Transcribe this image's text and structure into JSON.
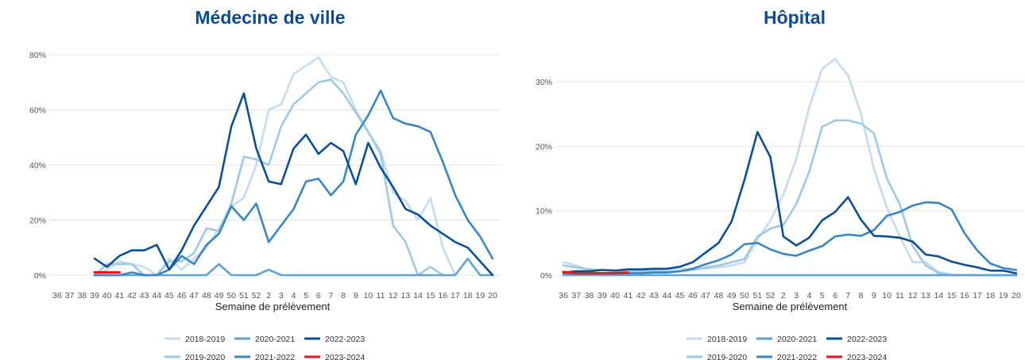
{
  "x_labels": [
    "36",
    "37",
    "38",
    "39",
    "40",
    "41",
    "42",
    "43",
    "44",
    "45",
    "46",
    "47",
    "48",
    "49",
    "50",
    "51",
    "52",
    "2",
    "3",
    "4",
    "5",
    "6",
    "7",
    "8",
    "9",
    "10",
    "11",
    "12",
    "13",
    "14",
    "15",
    "16",
    "17",
    "18",
    "19",
    "20"
  ],
  "xlabel": "Semaine de prélèvement",
  "colors": {
    "2018-2019": "#c6dbef",
    "2019-2020": "#9ecae1",
    "2020-2021": "#5fa2d4",
    "2021-2022": "#3a86c0",
    "2022-2023": "#0d4f94",
    "2023-2024": "#e31a1c"
  },
  "chart_data": [
    {
      "type": "line",
      "title": "Médecine de ville",
      "xlabel": "Semaine de prélèvement",
      "ylim": [
        0,
        80
      ],
      "yticks": [
        0,
        20,
        40,
        60,
        80
      ],
      "ytick_labels": [
        "0%",
        "20%",
        "40%",
        "60%",
        "80%"
      ],
      "legend": "bottom",
      "x": [
        "36",
        "37",
        "38",
        "39",
        "40",
        "41",
        "42",
        "43",
        "44",
        "45",
        "46",
        "47",
        "48",
        "49",
        "50",
        "51",
        "52",
        "2",
        "3",
        "4",
        "5",
        "6",
        "7",
        "8",
        "9",
        "10",
        "11",
        "12",
        "13",
        "14",
        "15",
        "16",
        "17",
        "18",
        "19",
        "20"
      ],
      "series": [
        {
          "name": "2018-2019",
          "values": [
            null,
            null,
            null,
            0,
            2,
            5,
            4,
            3,
            0,
            6,
            2,
            6,
            10,
            17,
            25,
            28,
            40,
            60,
            62,
            73,
            76,
            79,
            72,
            70,
            60,
            52,
            45,
            30,
            27,
            20,
            28,
            10,
            0,
            null,
            null,
            null
          ]
        },
        {
          "name": "2019-2020",
          "values": [
            null,
            null,
            null,
            0,
            4,
            4,
            4,
            0,
            0,
            5,
            5,
            8,
            17,
            16,
            26,
            43,
            42,
            40,
            54,
            62,
            66,
            70,
            71,
            66,
            59,
            52,
            44,
            18,
            12,
            0,
            3,
            0,
            null,
            null,
            null,
            null
          ]
        },
        {
          "name": "2020-2021",
          "values": [
            null,
            null,
            null,
            0,
            0,
            0,
            0,
            0,
            0,
            0,
            0,
            0,
            0,
            4,
            0,
            0,
            0,
            2,
            0,
            0,
            0,
            0,
            0,
            0,
            0,
            0,
            0,
            0,
            0,
            0,
            0,
            0,
            0,
            6,
            0,
            0
          ]
        },
        {
          "name": "2021-2022",
          "values": [
            null,
            null,
            null,
            0,
            0,
            0,
            1,
            0,
            0,
            2,
            7,
            4,
            11,
            15,
            25,
            20,
            26,
            12,
            18,
            24,
            34,
            35,
            29,
            34,
            51,
            58,
            67,
            57,
            55,
            54,
            52,
            41,
            29,
            20,
            14,
            6
          ]
        },
        {
          "name": "2022-2023",
          "values": [
            null,
            null,
            null,
            6,
            3,
            7,
            9,
            9,
            11,
            2,
            9,
            18,
            25,
            32,
            54,
            66,
            46,
            34,
            33,
            46,
            51,
            44,
            48,
            45,
            33,
            48,
            39,
            32,
            24,
            22,
            18,
            15,
            12,
            10,
            5,
            0
          ]
        },
        {
          "name": "2023-2024",
          "values": [
            null,
            null,
            null,
            1,
            1,
            1,
            null,
            null,
            null,
            null,
            null,
            null,
            null,
            null,
            null,
            null,
            null,
            null,
            null,
            null,
            null,
            null,
            null,
            null,
            null,
            null,
            null,
            null,
            null,
            null,
            null,
            null,
            null,
            null,
            null,
            null
          ]
        }
      ]
    },
    {
      "type": "line",
      "title": "Hôpital",
      "xlabel": "Semaine de prélèvement",
      "ylim": [
        0,
        35
      ],
      "yticks": [
        0,
        10,
        20,
        30
      ],
      "ytick_labels": [
        "0%",
        "10%",
        "20%",
        "30%"
      ],
      "legend": "bottom",
      "x": [
        "36",
        "37",
        "38",
        "39",
        "40",
        "41",
        "42",
        "43",
        "44",
        "45",
        "46",
        "47",
        "48",
        "49",
        "50",
        "51",
        "52",
        "2",
        "3",
        "4",
        "5",
        "6",
        "7",
        "8",
        "9",
        "10",
        "11",
        "12",
        "13",
        "14",
        "15",
        "16",
        "17",
        "18",
        "19",
        "20"
      ],
      "series": [
        {
          "name": "2018-2019",
          "values": [
            2,
            1.5,
            0.8,
            0.8,
            0.7,
            0.8,
            0.8,
            0.8,
            0.8,
            1,
            1,
            1,
            1.2,
            1.5,
            2,
            5.5,
            8.5,
            12.5,
            18,
            26,
            32,
            33.5,
            31,
            25,
            16.5,
            10.5,
            6,
            2,
            2,
            0.5,
            0.1,
            0,
            0,
            0,
            0,
            0
          ]
        },
        {
          "name": "2019-2020",
          "values": [
            1.5,
            1.2,
            0.9,
            0.8,
            0.7,
            0.6,
            0.6,
            0.7,
            0.5,
            0.6,
            0.8,
            1.2,
            1.5,
            2,
            2.5,
            6,
            7.2,
            7.8,
            11,
            16,
            23,
            24,
            24,
            23.5,
            22,
            15,
            11,
            4.5,
            1.5,
            0.3,
            0,
            0,
            0,
            0,
            0,
            0
          ]
        },
        {
          "name": "2020-2021",
          "values": [
            0,
            0,
            0,
            0,
            0,
            0,
            0,
            0,
            0,
            0,
            0,
            0,
            0,
            0,
            0,
            0,
            0,
            0,
            0,
            0,
            0,
            0,
            0,
            0,
            0,
            0,
            0,
            0,
            0,
            0,
            0,
            0,
            0,
            0,
            0,
            0
          ]
        },
        {
          "name": "2021-2022",
          "values": [
            0.3,
            0.3,
            0.3,
            0.3,
            0.3,
            0.3,
            0.3,
            0.4,
            0.4,
            0.6,
            1,
            1.7,
            2.3,
            3.2,
            4.8,
            5,
            4,
            3.3,
            3,
            3.8,
            4.5,
            6,
            6.3,
            6.1,
            7,
            9.2,
            9.8,
            10.8,
            11.3,
            11.2,
            10.2,
            6.5,
            3.8,
            1.8,
            1.1,
            0.8
          ]
        },
        {
          "name": "2022-2023",
          "values": [
            0.4,
            0.6,
            0.6,
            0.8,
            0.7,
            0.9,
            0.9,
            1,
            1,
            1.3,
            2,
            3.5,
            5,
            8.3,
            14.8,
            22.2,
            18.3,
            6,
            4.6,
            5.8,
            8.5,
            9.8,
            12.1,
            8.6,
            6.1,
            6,
            5.8,
            5.2,
            3.2,
            2.9,
            2.1,
            1.6,
            1.2,
            0.7,
            0.7,
            0.3
          ]
        },
        {
          "name": "2023-2024",
          "values": [
            0.5,
            0.3,
            0.3,
            0.3,
            0.3,
            0.4,
            null,
            null,
            null,
            null,
            null,
            null,
            null,
            null,
            null,
            null,
            null,
            null,
            null,
            null,
            null,
            null,
            null,
            null,
            null,
            null,
            null,
            null,
            null,
            null,
            null,
            null,
            null,
            null,
            null,
            null
          ]
        }
      ]
    }
  ]
}
